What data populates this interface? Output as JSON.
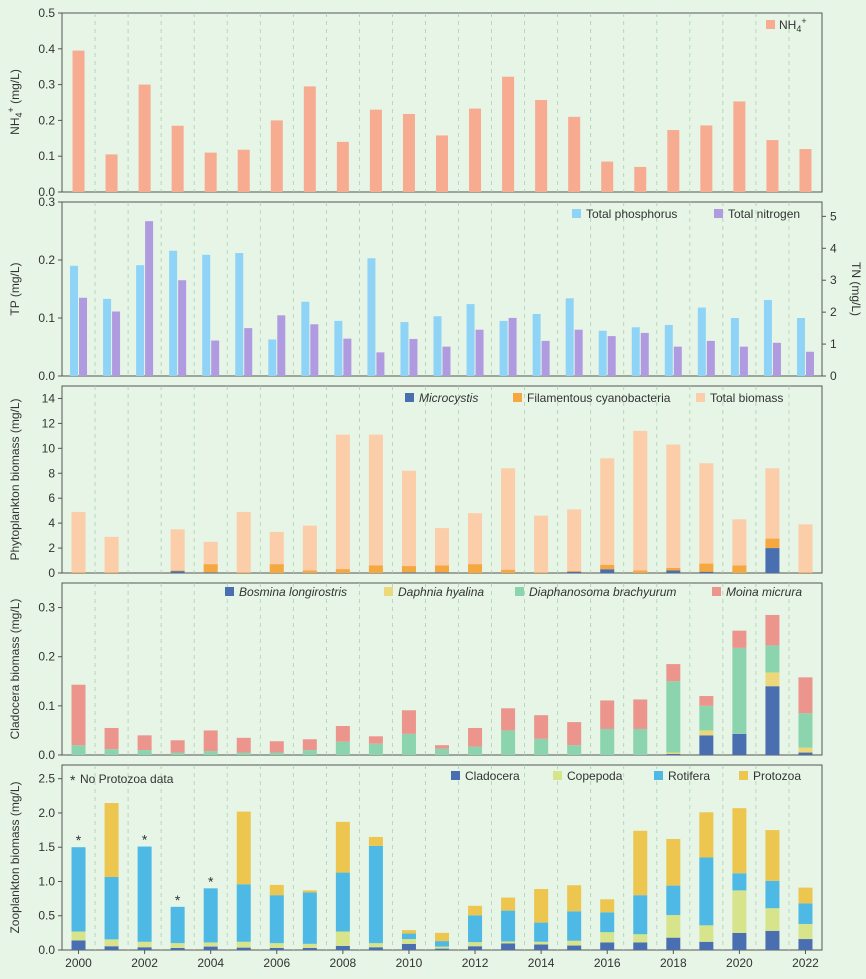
{
  "colors": {
    "background": "#e6f5e6",
    "nh4": "#f7ab91",
    "tp": "#8fd4f7",
    "tn": "#b19be0",
    "microcystis": "#4a6fb0",
    "filamentous": "#f5a740",
    "total_biomass": "#fbcda8",
    "bosmina": "#4a6fb0",
    "daphnia": "#ecd87a",
    "diaphanosoma": "#8bd4ae",
    "moina": "#ec958c",
    "cladocera": "#4a6fb0",
    "copepoda": "#d8e48c",
    "rotifera": "#4db9e4",
    "protozoa": "#ecc64e"
  },
  "chart_data": [
    {
      "id": "nh4",
      "type": "bar",
      "ylabel": "NH4+ (mg/L)",
      "ylim": [
        0,
        0.5
      ],
      "yticks": [
        "0.0",
        "0.1",
        "0.2",
        "0.3",
        "0.4",
        "0.5"
      ],
      "categories": [
        "2000",
        "2001",
        "2002",
        "2003",
        "2004",
        "2005",
        "2006",
        "2007",
        "2008",
        "2009",
        "2010",
        "2011",
        "2012",
        "2013",
        "2014",
        "2015",
        "2016",
        "2017",
        "2018",
        "2019",
        "2020",
        "2021",
        "2022"
      ],
      "series": [
        {
          "name": "NH4+",
          "values": [
            0.395,
            0.105,
            0.3,
            0.185,
            0.11,
            0.118,
            0.2,
            0.295,
            0.14,
            0.23,
            0.218,
            0.158,
            0.233,
            0.322,
            0.257,
            0.21,
            0.085,
            0.07,
            0.173,
            0.186,
            0.253,
            0.145,
            0.12
          ]
        }
      ],
      "legend": "top-right"
    },
    {
      "id": "tptn",
      "type": "bar",
      "ylabel": "TP (mg/L)",
      "ylabel_right": "TN (mg/L)",
      "ylim": [
        0,
        0.3
      ],
      "ylim_right": [
        0,
        5.45
      ],
      "yticks": [
        "0.0",
        "0.1",
        "0.2",
        "0.3"
      ],
      "yticks_right": [
        "0",
        "1",
        "2",
        "3",
        "4",
        "5"
      ],
      "categories": [
        "2000",
        "2001",
        "2002",
        "2003",
        "2004",
        "2005",
        "2006",
        "2007",
        "2008",
        "2009",
        "2010",
        "2011",
        "2012",
        "2013",
        "2014",
        "2015",
        "2016",
        "2017",
        "2018",
        "2019",
        "2020",
        "2021",
        "2022"
      ],
      "series": [
        {
          "name": "Total phosphorus",
          "axis": "left",
          "values": [
            0.19,
            0.133,
            0.191,
            0.216,
            0.209,
            0.212,
            0.063,
            0.128,
            0.095,
            0.203,
            0.093,
            0.103,
            0.124,
            0.095,
            0.107,
            0.134,
            0.078,
            0.084,
            0.088,
            0.118,
            0.1,
            0.131,
            0.1
          ]
        },
        {
          "name": "Total nitrogen",
          "axis": "right",
          "values": [
            2.45,
            2.02,
            4.85,
            3.0,
            1.11,
            1.5,
            1.9,
            1.62,
            1.17,
            0.74,
            1.16,
            0.92,
            1.45,
            1.82,
            1.1,
            1.45,
            1.25,
            1.35,
            0.92,
            1.1,
            0.92,
            1.04,
            0.76
          ]
        }
      ],
      "legend": "top-right"
    },
    {
      "id": "phyto",
      "type": "bar",
      "ylabel": "Phytoplankton biomass (mg/L)",
      "ylim": [
        0,
        15
      ],
      "yticks": [
        "0",
        "2",
        "4",
        "6",
        "8",
        "10",
        "12",
        "14"
      ],
      "categories": [
        "2000",
        "2001",
        "2002",
        "2003",
        "2004",
        "2005",
        "2006",
        "2007",
        "2008",
        "2009",
        "2010",
        "2011",
        "2012",
        "2013",
        "2014",
        "2015",
        "2016",
        "2017",
        "2018",
        "2019",
        "2020",
        "2021",
        "2022"
      ],
      "series": [
        {
          "name": "Microcystis",
          "values": [
            0,
            0,
            0,
            0.15,
            0.05,
            0,
            0,
            0,
            0,
            0,
            0.05,
            0.05,
            0,
            0,
            0,
            0.1,
            0.3,
            0,
            0.2,
            0.1,
            0,
            2.0,
            0
          ]
        },
        {
          "name": "Filamentous cyanobacteria",
          "values": [
            0.05,
            0.05,
            0,
            0.05,
            0.65,
            0.05,
            0.7,
            0.2,
            0.3,
            0.6,
            0.5,
            0.55,
            0.7,
            0.25,
            0.05,
            0.05,
            0.35,
            0.2,
            0.2,
            0.65,
            0.6,
            0.75,
            0.05
          ]
        },
        {
          "name": "Total biomass",
          "values": [
            4.9,
            2.9,
            0,
            3.5,
            2.5,
            4.9,
            3.3,
            3.8,
            11.1,
            11.1,
            8.2,
            3.6,
            4.8,
            8.4,
            4.6,
            5.1,
            9.2,
            11.4,
            10.3,
            8.8,
            4.3,
            8.4,
            3.9
          ]
        }
      ],
      "legend": "top-right"
    },
    {
      "id": "clado",
      "type": "bar",
      "ylabel": "Cladocera biomass (mg/L)",
      "ylim": [
        0,
        0.35
      ],
      "yticks": [
        "0.0",
        "0.1",
        "0.2",
        "0.3"
      ],
      "categories": [
        "2000",
        "2001",
        "2002",
        "2003",
        "2004",
        "2005",
        "2006",
        "2007",
        "2008",
        "2009",
        "2010",
        "2011",
        "2012",
        "2013",
        "2014",
        "2015",
        "2016",
        "2017",
        "2018",
        "2019",
        "2020",
        "2021",
        "2022"
      ],
      "series": [
        {
          "name": "Bosmina longirostris",
          "values": [
            0,
            0,
            0,
            0,
            0,
            0,
            0,
            0,
            0,
            0,
            0,
            0,
            0,
            0,
            0,
            0,
            0,
            0,
            0.002,
            0.04,
            0.043,
            0.14,
            0.005
          ]
        },
        {
          "name": "Daphnia hyalina",
          "values": [
            0,
            0,
            0,
            0,
            0,
            0,
            0,
            0,
            0,
            0,
            0,
            0,
            0,
            0,
            0,
            0,
            0,
            0,
            0.003,
            0.01,
            0,
            0.028,
            0.01
          ]
        },
        {
          "name": "Diaphanosoma brachyurum",
          "values": [
            0.02,
            0.012,
            0.01,
            0.005,
            0.008,
            0.005,
            0.005,
            0.01,
            0.027,
            0.023,
            0.043,
            0.013,
            0.017,
            0.05,
            0.033,
            0.02,
            0.053,
            0.053,
            0.145,
            0.05,
            0.175,
            0.055,
            0.07
          ]
        },
        {
          "name": "Moina micrura",
          "values": [
            0.123,
            0.043,
            0.03,
            0.025,
            0.042,
            0.03,
            0.023,
            0.022,
            0.032,
            0.015,
            0.048,
            0.007,
            0.038,
            0.045,
            0.048,
            0.047,
            0.058,
            0.06,
            0.035,
            0.02,
            0.035,
            0.062,
            0.073
          ]
        }
      ],
      "legend": "top"
    },
    {
      "id": "zoo",
      "type": "bar",
      "ylabel": "Zooplankton biomass (mg/L)",
      "ylim": [
        0,
        2.7
      ],
      "yticks": [
        "0.0",
        "0.5",
        "1.0",
        "1.5",
        "2.0",
        "2.5"
      ],
      "categories": [
        "2000",
        "2001",
        "2002",
        "2003",
        "2004",
        "2005",
        "2006",
        "2007",
        "2008",
        "2009",
        "2010",
        "2011",
        "2012",
        "2013",
        "2014",
        "2015",
        "2016",
        "2017",
        "2018",
        "2019",
        "2020",
        "2021",
        "2022"
      ],
      "xticks": [
        "2000",
        "2002",
        "2004",
        "2006",
        "2008",
        "2010",
        "2012",
        "2014",
        "2016",
        "2018",
        "2020",
        "2022"
      ],
      "series": [
        {
          "name": "Cladocera",
          "values": [
            0.14,
            0.055,
            0.04,
            0.03,
            0.05,
            0.035,
            0.03,
            0.03,
            0.06,
            0.04,
            0.09,
            0.02,
            0.055,
            0.095,
            0.08,
            0.065,
            0.11,
            0.11,
            0.18,
            0.12,
            0.25,
            0.28,
            0.16
          ]
        },
        {
          "name": "Copepoda",
          "values": [
            0.13,
            0.1,
            0.08,
            0.07,
            0.06,
            0.085,
            0.07,
            0.06,
            0.21,
            0.06,
            0.07,
            0.03,
            0.06,
            0.03,
            0.04,
            0.07,
            0.15,
            0.12,
            0.33,
            0.24,
            0.62,
            0.33,
            0.22
          ]
        },
        {
          "name": "Rotifera",
          "values": [
            1.23,
            0.91,
            1.39,
            0.53,
            0.79,
            0.84,
            0.7,
            0.75,
            0.86,
            1.42,
            0.08,
            0.08,
            0.39,
            0.45,
            0.28,
            0.43,
            0.29,
            0.57,
            0.43,
            0.99,
            0.25,
            0.4,
            0.3
          ]
        },
        {
          "name": "Protozoa",
          "values": [
            0,
            1.08,
            0,
            0,
            0,
            1.06,
            0.15,
            0.03,
            0.74,
            0.13,
            0.05,
            0.12,
            0.14,
            0.19,
            0.49,
            0.38,
            0.19,
            0.94,
            0.68,
            0.66,
            0.95,
            0.74,
            0.23
          ]
        }
      ],
      "asterisk_years": [
        "2000",
        "2002",
        "2003",
        "2004"
      ],
      "note": "No Protozoa data",
      "legend": "top-right"
    }
  ]
}
